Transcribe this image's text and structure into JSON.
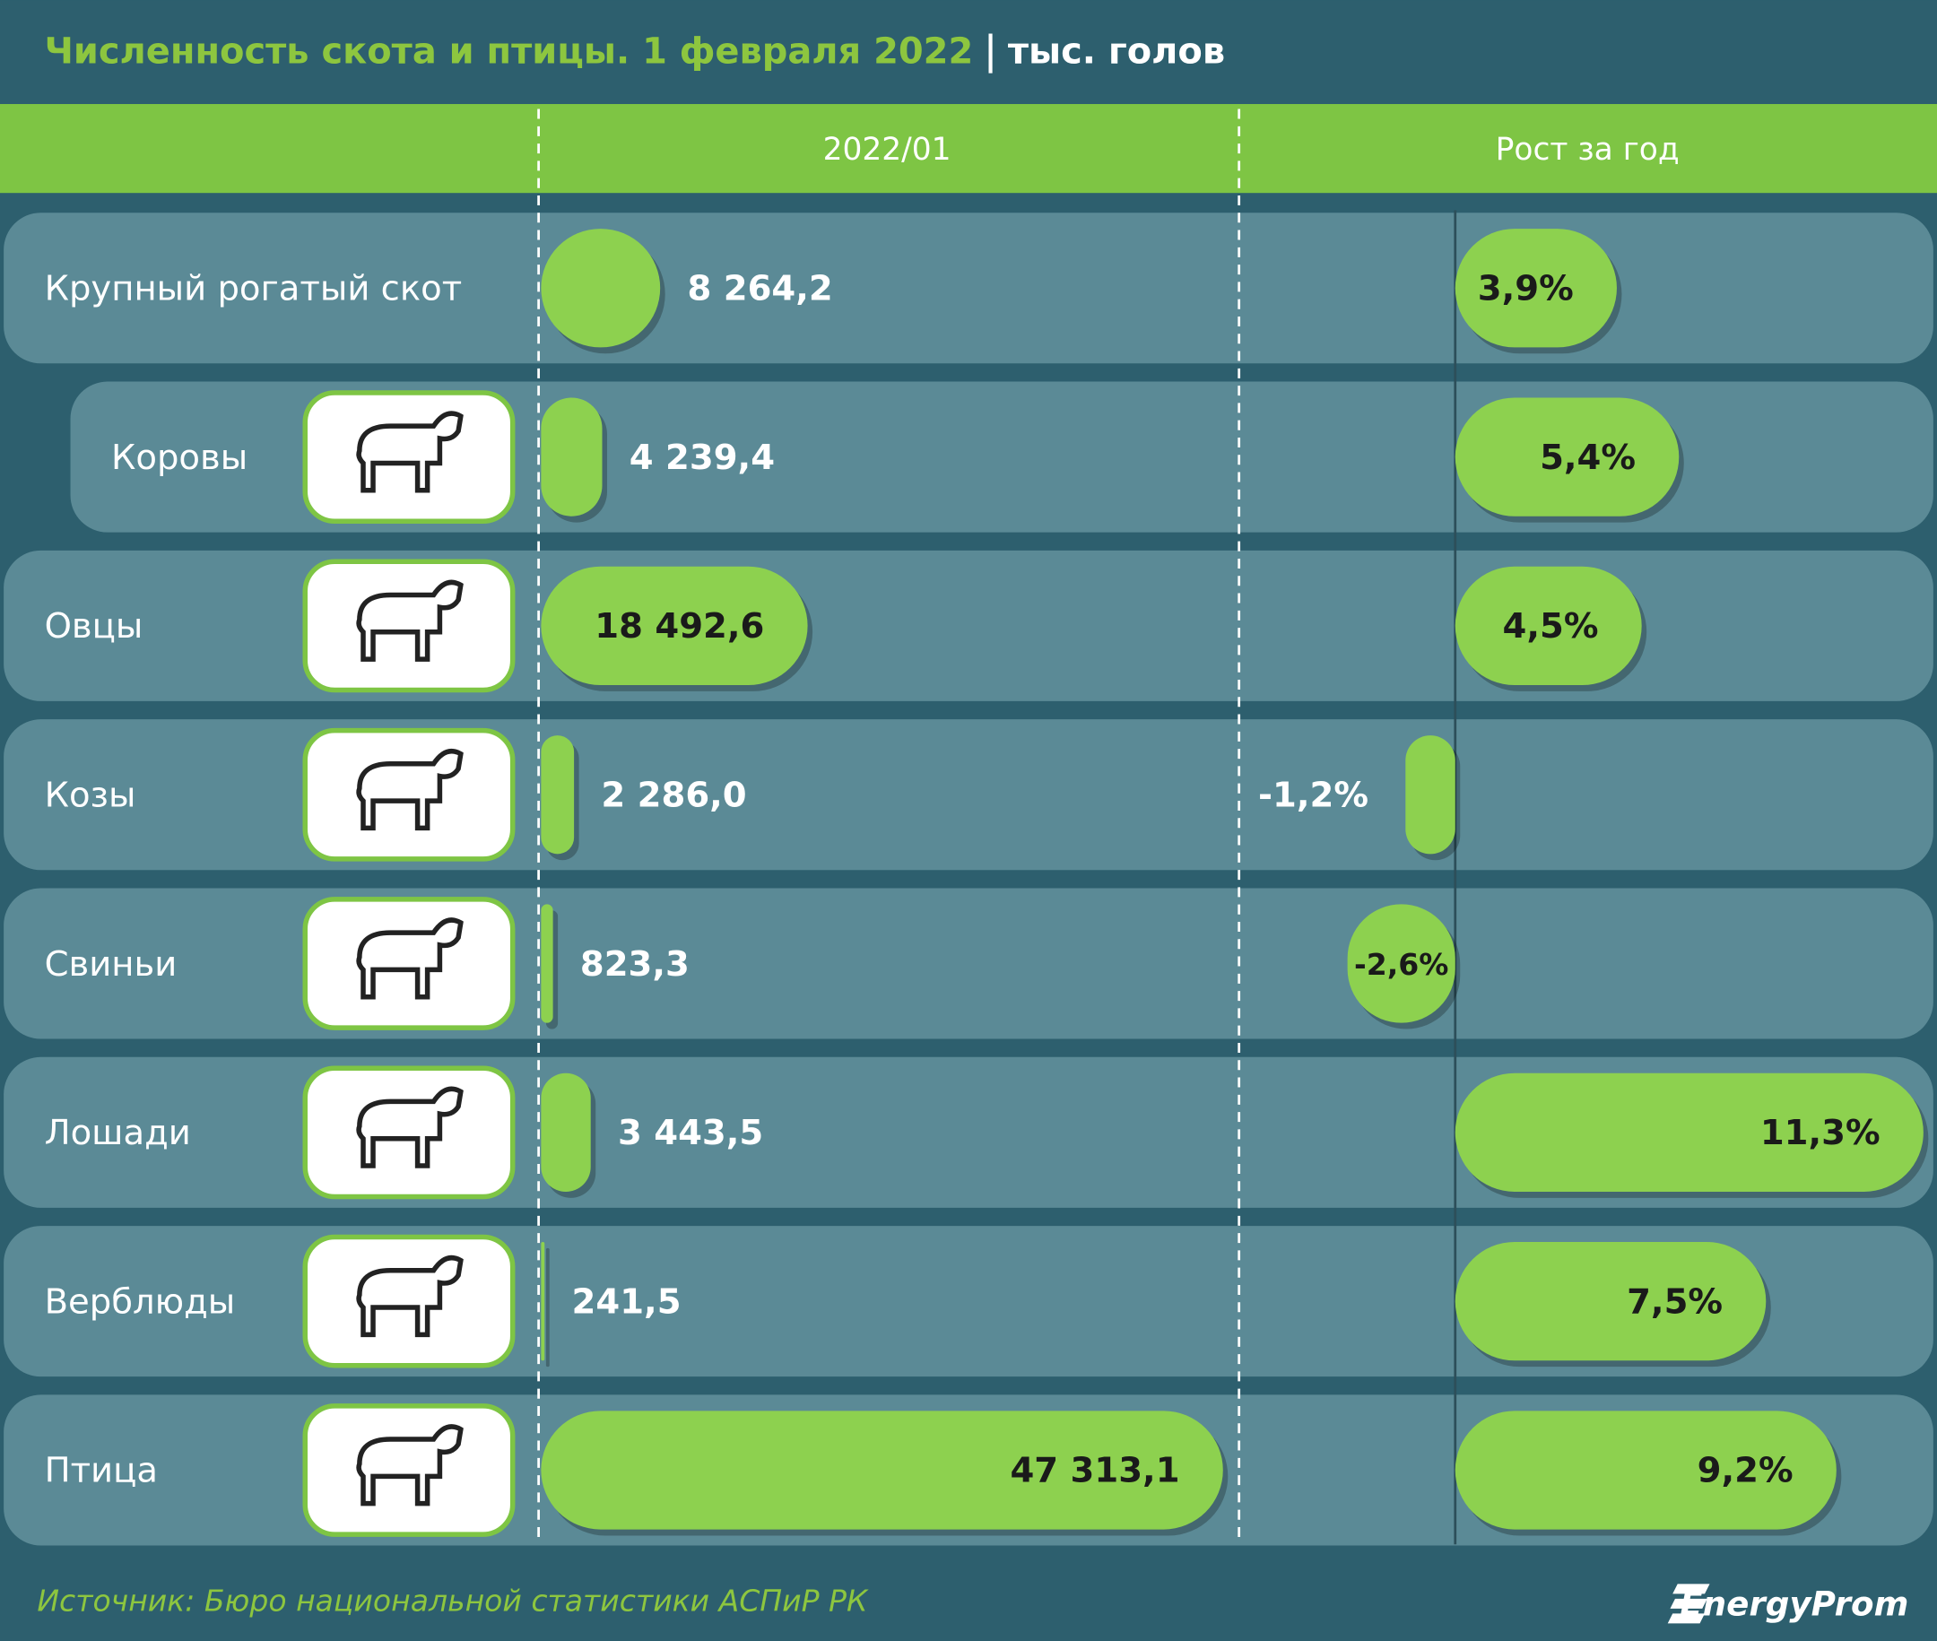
{
  "chart_data": {
    "type": "bar",
    "title": "Численность скота и птицы. 1 февраля 2022",
    "unit": "тыс. голов",
    "categories": [
      "Крупный рогатый скот",
      "Коровы",
      "Овцы",
      "Козы",
      "Свиньи",
      "Лошади",
      "Верблюды",
      "Птица"
    ],
    "series": [
      {
        "name": "2022/01",
        "color": "#8dd14f",
        "values": [
          8264.2,
          4239.4,
          18492.6,
          2286.0,
          823.3,
          3443.5,
          241.5,
          47313.1
        ],
        "value_labels": [
          "8 264,2",
          "4 239,4",
          "18 492,6",
          "2 286,0",
          "823,3",
          "3 443,5",
          "241,5",
          "47 313,1"
        ]
      },
      {
        "name": "Рост за год",
        "color": "#8dd14f",
        "values": [
          3.9,
          5.4,
          4.5,
          -1.2,
          -2.6,
          11.3,
          7.5,
          9.2
        ],
        "value_labels": [
          "3,9%",
          "5,4%",
          "4,5%",
          "-1,2%",
          "-2,6%",
          "11,3%",
          "7,5%",
          "9,2%"
        ]
      }
    ],
    "source": "Источник: Бюро национальной статистики АСПиР РК",
    "logo": "EnergyProm"
  }
}
